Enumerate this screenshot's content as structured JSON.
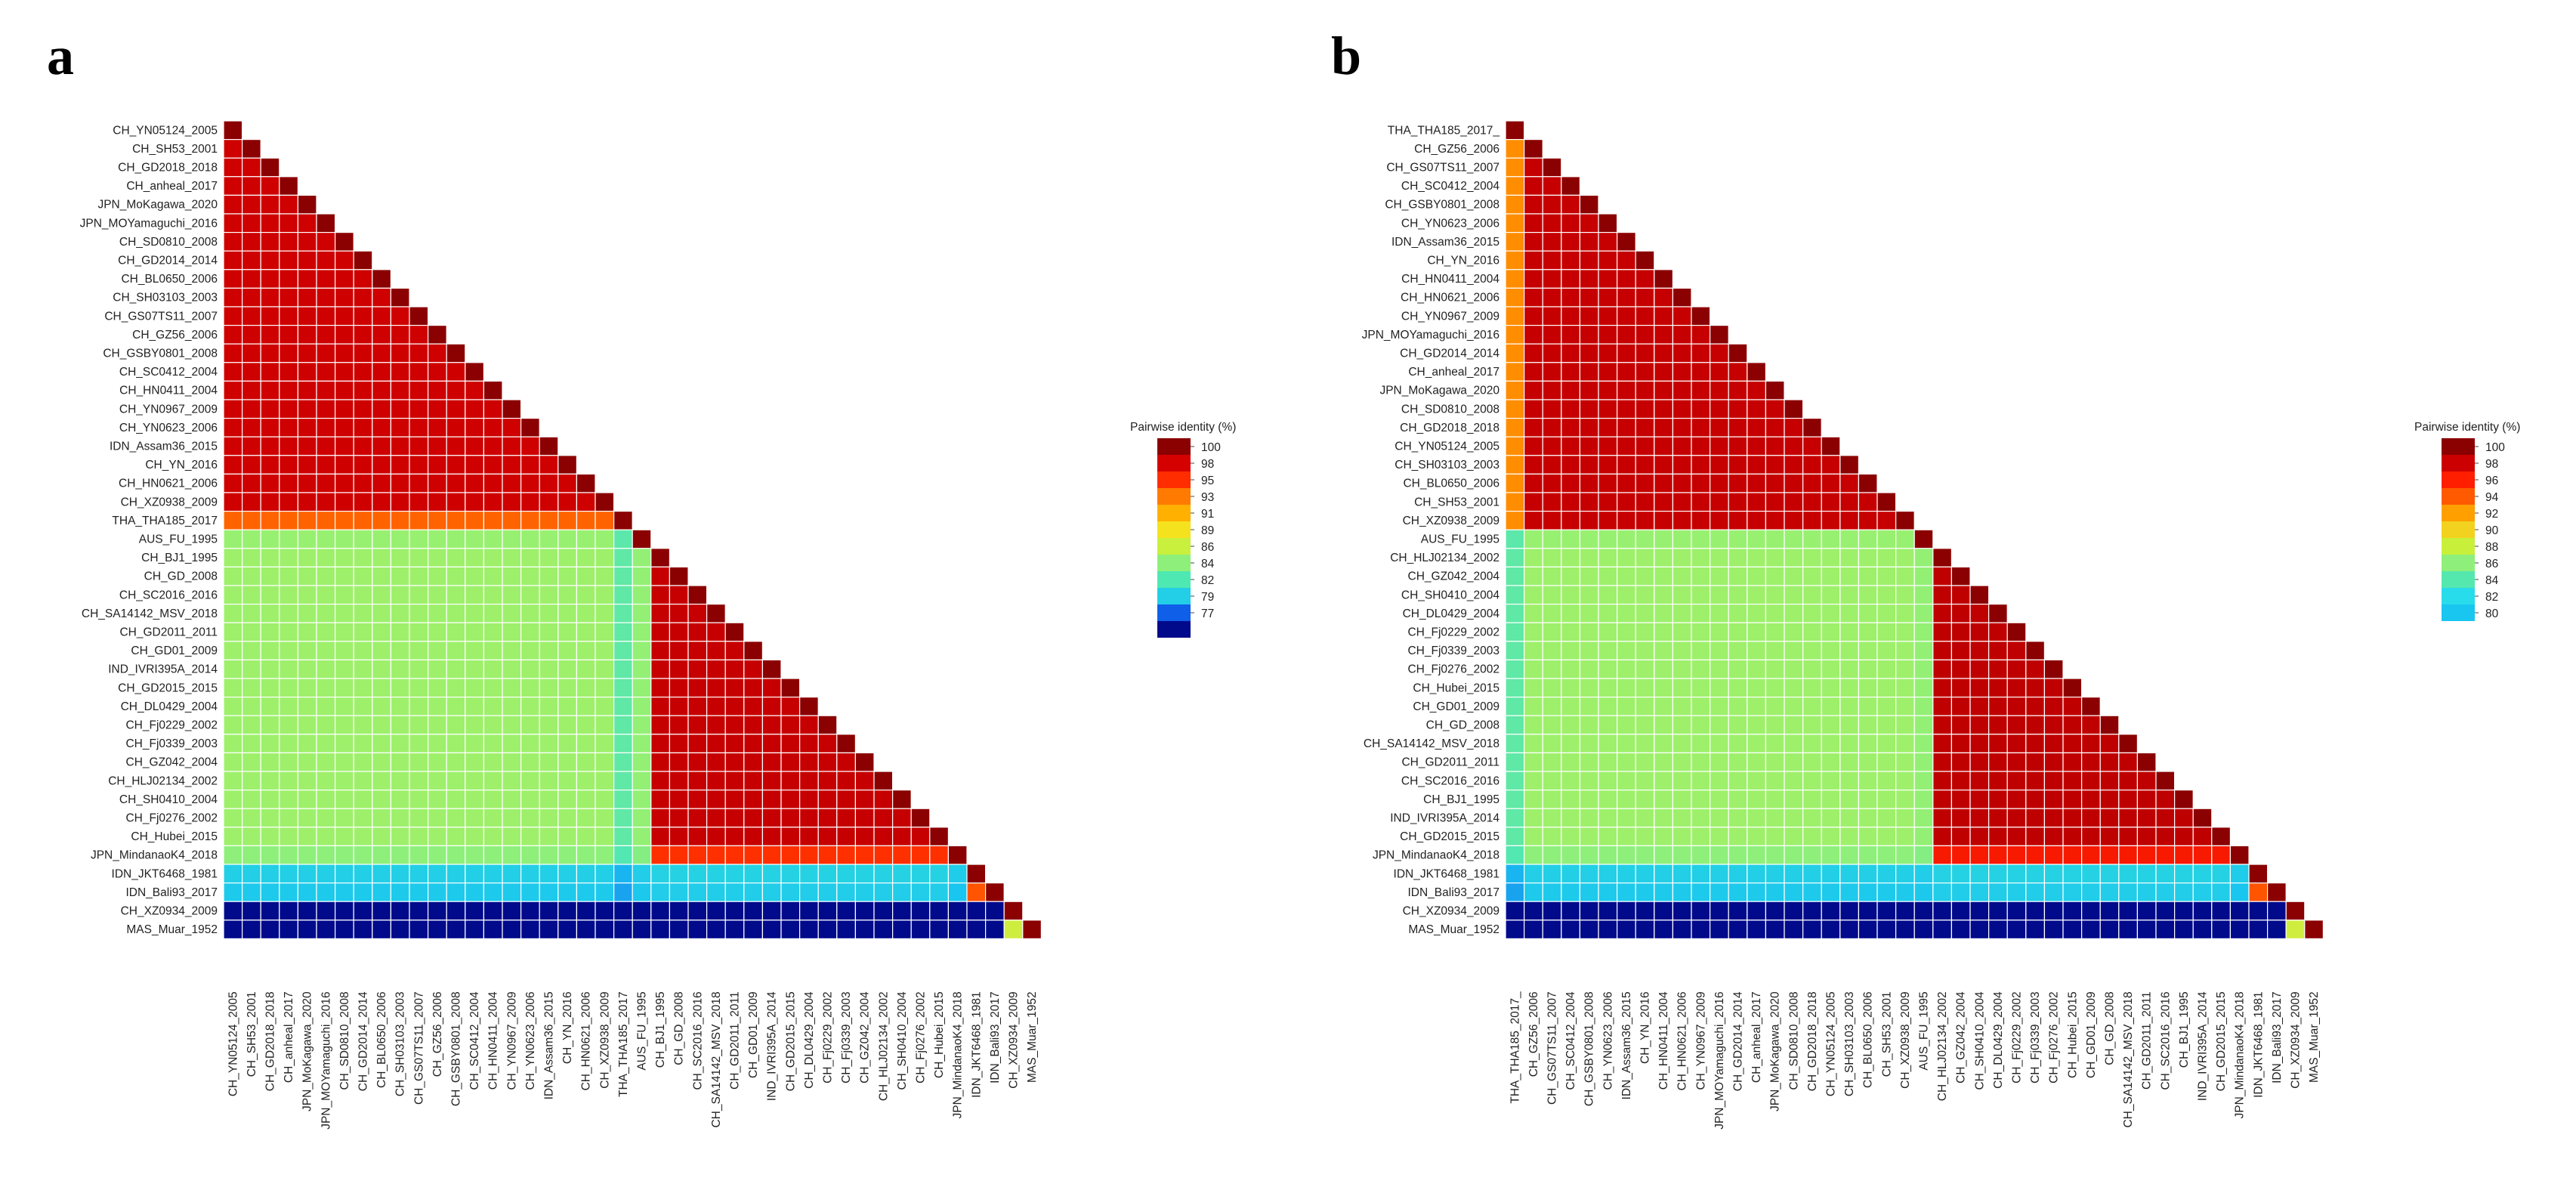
{
  "chart_data": [
    {
      "panel": "a",
      "type": "heatmap",
      "shape": "lower-triangle",
      "legend_title": "Pairwise identity (%)",
      "legend_ticks": [
        "100",
        "98",
        "95",
        "93",
        "91",
        "89",
        "86",
        "84",
        "82",
        "79",
        "77"
      ],
      "legend_colors": [
        "#8b0000",
        "#d50000",
        "#ff2d00",
        "#ff7a00",
        "#ffb000",
        "#f5e21e",
        "#c9f03c",
        "#8ef07a",
        "#4ee8b2",
        "#22cfe6",
        "#0f5fe8",
        "#000a8b"
      ],
      "color_scale": {
        "stops": [
          [
            76,
            "#000a8b"
          ],
          [
            77,
            "#0a30d0"
          ],
          [
            79,
            "#1a6fee"
          ],
          [
            81,
            "#19c6f0"
          ],
          [
            83,
            "#38e3cf"
          ],
          [
            85,
            "#5fe8a6"
          ],
          [
            87,
            "#8ef07a"
          ],
          [
            89,
            "#c2f048"
          ],
          [
            91,
            "#f2e21e"
          ],
          [
            93,
            "#ffb000"
          ],
          [
            95,
            "#ff6a00"
          ],
          [
            97,
            "#ff2200"
          ],
          [
            98.5,
            "#e00000"
          ],
          [
            99.5,
            "#bb0000"
          ],
          [
            100,
            "#8b0000"
          ]
        ]
      },
      "labels": [
        "CH_YN05124_2005",
        "CH_SH53_2001",
        "CH_GD2018_2018",
        "CH_anheal_2017",
        "JPN_MoKagawa_2020",
        "JPN_MOYamaguchi_2016",
        "CH_SD0810_2008",
        "CH_GD2014_2014",
        "CH_BL0650_2006",
        "CH_SH03103_2003",
        "CH_GS07TS11_2007",
        "CH_GZ56_2006",
        "CH_GSBY0801_2008",
        "CH_SC0412_2004",
        "CH_HN0411_2004",
        "CH_YN0967_2009",
        "CH_YN0623_2006",
        "IDN_Assam36_2015",
        "CH_YN_2016",
        "CH_HN0621_2006",
        "CH_XZ0938_2009",
        "THA_THA185_2017",
        "AUS_FU_1995",
        "CH_BJ1_1995",
        "CH_GD_2008",
        "CH_SC2016_2016",
        "CH_SA14142_MSV_2018",
        "CH_GD2011_2011",
        "CH_GD01_2009",
        "IND_IVRI395A_2014",
        "CH_GD2015_2015",
        "CH_DL0429_2004",
        "CH_Fj0229_2002",
        "CH_Fj0339_2003",
        "CH_GZ042_2004",
        "CH_HLJ02134_2002",
        "CH_SH0410_2004",
        "CH_Fj0276_2002",
        "CH_Hubei_2015",
        "JPN_MindanaoK4_2018",
        "IDN_JKT6468_1981",
        "IDN_Bali93_2017",
        "CH_XZ0934_2009",
        "MAS_Muar_1952"
      ],
      "groups": [
        0,
        0,
        0,
        0,
        0,
        0,
        0,
        0,
        0,
        0,
        0,
        0,
        0,
        0,
        0,
        0,
        0,
        0,
        0,
        0,
        0,
        1,
        2,
        3,
        3,
        3,
        3,
        3,
        3,
        3,
        3,
        3,
        3,
        3,
        3,
        3,
        3,
        3,
        3,
        4,
        5,
        6,
        7,
        8
      ],
      "group_identity": [
        [
          99.0,
          95.2,
          87.4,
          87.6,
          87.0,
          81.6,
          81.3,
          76.0,
          76.0
        ],
        [
          95.2,
          100,
          84.8,
          85.0,
          84.4,
          80.6,
          80.2,
          76.0,
          76.0
        ],
        [
          87.4,
          84.8,
          100,
          87.2,
          86.6,
          81.5,
          81.2,
          76.0,
          76.0
        ],
        [
          87.6,
          85.0,
          87.2,
          99.2,
          96.6,
          81.8,
          81.5,
          76.0,
          76.0
        ],
        [
          87.0,
          84.4,
          86.6,
          96.6,
          100,
          81.4,
          81.0,
          76.0,
          76.0
        ],
        [
          81.6,
          80.6,
          81.5,
          81.8,
          81.4,
          100,
          95.6,
          76.0,
          76.0
        ],
        [
          81.3,
          80.2,
          81.2,
          81.5,
          81.0,
          95.6,
          100,
          76.0,
          76.0
        ],
        [
          76.0,
          76.0,
          76.0,
          76.0,
          76.0,
          76.0,
          76.0,
          100,
          89.5
        ],
        [
          76.0,
          76.0,
          76.0,
          76.0,
          76.0,
          76.0,
          76.0,
          89.5,
          100
        ]
      ]
    },
    {
      "panel": "b",
      "type": "heatmap",
      "shape": "lower-triangle",
      "legend_title": "Pairwise identity (%)",
      "legend_ticks": [
        "100",
        "98",
        "96",
        "94",
        "92",
        "90",
        "88",
        "86",
        "84",
        "82",
        "80"
      ],
      "legend_colors": [
        "#8b0000",
        "#cc0000",
        "#ff1e00",
        "#ff5a00",
        "#ffa000",
        "#f2d21e",
        "#c8f03a",
        "#8ef07a",
        "#55e8ae",
        "#29dceb",
        "#19c6f0"
      ],
      "color_scale": {
        "stops": [
          [
            76,
            "#000a8b"
          ],
          [
            77,
            "#0a30d0"
          ],
          [
            79,
            "#1a6fee"
          ],
          [
            81,
            "#19c6f0"
          ],
          [
            83,
            "#38e3cf"
          ],
          [
            85,
            "#5fe8a6"
          ],
          [
            87,
            "#8ef07a"
          ],
          [
            89,
            "#c2f048"
          ],
          [
            91,
            "#f2e21e"
          ],
          [
            93,
            "#ffb000"
          ],
          [
            95,
            "#ff6a00"
          ],
          [
            97,
            "#ff2200"
          ],
          [
            98.5,
            "#e00000"
          ],
          [
            99.5,
            "#bb0000"
          ],
          [
            100,
            "#8b0000"
          ]
        ]
      },
      "labels": [
        "THA_THA185_2017_",
        "CH_GZ56_2006",
        "CH_GS07TS11_2007",
        "CH_SC0412_2004",
        "CH_GSBY0801_2008",
        "CH_YN0623_2006",
        "IDN_Assam36_2015",
        "CH_YN_2016",
        "CH_HN0411_2004",
        "CH_HN0621_2006",
        "CH_YN0967_2009",
        "JPN_MOYamaguchi_2016",
        "CH_GD2014_2014",
        "CH_anheal_2017",
        "JPN_MoKagawa_2020",
        "CH_SD0810_2008",
        "CH_GD2018_2018",
        "CH_YN05124_2005",
        "CH_SH03103_2003",
        "CH_BL0650_2006",
        "CH_SH53_2001",
        "CH_XZ0938_2009",
        "AUS_FU_1995",
        "CH_HLJ02134_2002",
        "CH_GZ042_2004",
        "CH_SH0410_2004",
        "CH_DL0429_2004",
        "CH_Fj0229_2002",
        "CH_Fj0339_2003",
        "CH_Fj0276_2002",
        "CH_Hubei_2015",
        "CH_GD01_2009",
        "CH_GD_2008",
        "CH_SA14142_MSV_2018",
        "CH_GD2011_2011",
        "CH_SC2016_2016",
        "CH_BJ1_1995",
        "IND_IVRI395A_2014",
        "CH_GD2015_2015",
        "JPN_MindanaoK4_2018",
        "IDN_JKT6468_1981",
        "IDN_Bali93_2017",
        "CH_XZ0934_2009",
        "MAS_Muar_1952"
      ],
      "groups": [
        0,
        1,
        1,
        1,
        1,
        1,
        1,
        1,
        1,
        1,
        1,
        1,
        1,
        1,
        1,
        1,
        1,
        1,
        1,
        1,
        1,
        1,
        2,
        3,
        3,
        3,
        3,
        3,
        3,
        3,
        3,
        3,
        3,
        3,
        3,
        3,
        3,
        3,
        3,
        4,
        5,
        6,
        7,
        8
      ],
      "group_identity": [
        [
          100,
          94.0,
          84.8,
          85.0,
          84.4,
          80.6,
          80.2,
          76.0,
          76.0
        ],
        [
          94.0,
          99.2,
          87.4,
          87.6,
          87.0,
          81.6,
          81.3,
          76.0,
          76.0
        ],
        [
          84.8,
          87.4,
          100,
          87.2,
          86.6,
          81.5,
          81.2,
          76.0,
          76.0
        ],
        [
          85.0,
          87.6,
          87.2,
          99.4,
          97.4,
          81.8,
          81.5,
          76.0,
          76.0
        ],
        [
          84.4,
          87.0,
          86.6,
          97.4,
          100,
          81.4,
          81.0,
          76.0,
          76.0
        ],
        [
          80.6,
          81.6,
          81.5,
          81.8,
          81.4,
          100,
          95.6,
          76.0,
          76.0
        ],
        [
          80.2,
          81.3,
          81.2,
          81.5,
          81.0,
          95.6,
          100,
          76.0,
          76.0
        ],
        [
          76.0,
          76.0,
          76.0,
          76.0,
          76.0,
          76.0,
          76.0,
          100,
          89.5
        ],
        [
          76.0,
          76.0,
          76.0,
          76.0,
          76.0,
          76.0,
          76.0,
          89.5,
          100
        ]
      ]
    }
  ]
}
